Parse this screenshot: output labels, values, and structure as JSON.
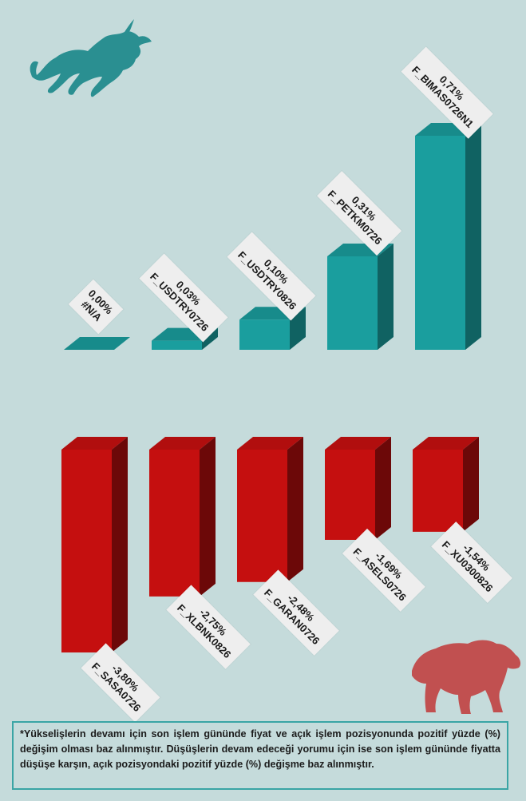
{
  "chart_data": [
    {
      "type": "bar",
      "categories": [
        "#N/A",
        "F_USDTRY0726",
        "F_USDTRY0826",
        "F_PETKM0726",
        "F_BIMAS0726N1"
      ],
      "values": [
        0.0,
        0.03,
        0.1,
        0.31,
        0.71
      ],
      "data_labels": [
        "0,00%",
        "0,03%",
        "0,10%",
        "0,31%",
        "0,71%"
      ],
      "color": "#1a9e9e"
    },
    {
      "type": "bar",
      "categories": [
        "F_SASA0726",
        "F_XLBNK0826",
        "F_GARAN0726",
        "F_ASELS0726",
        "F_XU0300826"
      ],
      "values": [
        -3.8,
        -2.75,
        -2.48,
        -1.69,
        -1.54
      ],
      "data_labels": [
        "-3,80%",
        "-2,75%",
        "-2,48%",
        "-1,69%",
        "-1,54%"
      ],
      "color": "#c50f0f"
    }
  ],
  "icons": {
    "top": "bull-icon",
    "bottom": "bear-icon"
  },
  "note": "*Yükselişlerin devamı için son işlem gününde fiyat ve açık işlem pozisyonunda pozitif yüzde (%) değişim olması baz alınmıştır. Düşüşlerin devam edeceği yorumu için ise son işlem gününde fiyatta düşüşe karşın, açık pozisyondaki pozitif yüzde (%) değişme baz alınmıştır."
}
